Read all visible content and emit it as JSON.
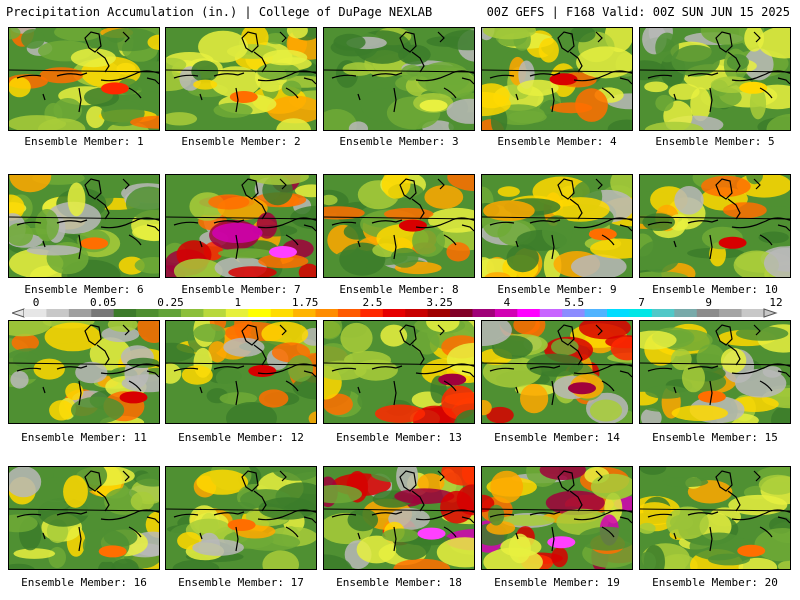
{
  "header": {
    "left_title": "Precipitation Accumulation (in.) | College of DuPage NEXLAB",
    "right_title": "00Z GEFS | F168 Valid: 00Z SUN JUN 15 2025"
  },
  "member_label_prefix": "Ensemble Member: ",
  "members": [
    {
      "number": 1,
      "label": "Ensemble Member: 1",
      "max_in": 3.0
    },
    {
      "number": 2,
      "label": "Ensemble Member: 2",
      "max_in": 2.5
    },
    {
      "number": 3,
      "label": "Ensemble Member: 3",
      "max_in": 1.5
    },
    {
      "number": 4,
      "label": "Ensemble Member: 4",
      "max_in": 3.25
    },
    {
      "number": 5,
      "label": "Ensemble Member: 5",
      "max_in": 2.0
    },
    {
      "number": 6,
      "label": "Ensemble Member: 6",
      "max_in": 2.5
    },
    {
      "number": 7,
      "label": "Ensemble Member: 7",
      "max_in": 5.5
    },
    {
      "number": 8,
      "label": "Ensemble Member: 8",
      "max_in": 3.25
    },
    {
      "number": 9,
      "label": "Ensemble Member: 9",
      "max_in": 2.5
    },
    {
      "number": 10,
      "label": "Ensemble Member: 10",
      "max_in": 3.25
    },
    {
      "number": 11,
      "label": "Ensemble Member: 11",
      "max_in": 3.25
    },
    {
      "number": 12,
      "label": "Ensemble Member: 12",
      "max_in": 3.25
    },
    {
      "number": 13,
      "label": "Ensemble Member: 13",
      "max_in": 4.0
    },
    {
      "number": 14,
      "label": "Ensemble Member: 14",
      "max_in": 4.0
    },
    {
      "number": 15,
      "label": "Ensemble Member: 15",
      "max_in": 2.5
    },
    {
      "number": 16,
      "label": "Ensemble Member: 16",
      "max_in": 2.5
    },
    {
      "number": 17,
      "label": "Ensemble Member: 17",
      "max_in": 2.5
    },
    {
      "number": 18,
      "label": "Ensemble Member: 18",
      "max_in": 5.5
    },
    {
      "number": 19,
      "label": "Ensemble Member: 19",
      "max_in": 5.5
    },
    {
      "number": 20,
      "label": "Ensemble Member: 20",
      "max_in": 2.5
    }
  ],
  "colorbar": {
    "units": "in.",
    "tick_labels": [
      "0",
      "0.05",
      "0.25",
      "1",
      "1.75",
      "2.5",
      "3.25",
      "4",
      "5.5",
      "7",
      "9",
      "12"
    ],
    "colors": [
      "#e6e6e6",
      "#c8c8c8",
      "#a0a0a0",
      "#787878",
      "#3c7a2a",
      "#4e8e30",
      "#62a238",
      "#8cbf3a",
      "#b8d83c",
      "#e6f03c",
      "#ffff00",
      "#ffdc00",
      "#ffb400",
      "#ff8c00",
      "#ff5a00",
      "#ff2800",
      "#e60000",
      "#c80000",
      "#a00000",
      "#820028",
      "#a00078",
      "#d200b4",
      "#ff00ff",
      "#c864ff",
      "#8c8cff",
      "#50b4ff",
      "#00dcff",
      "#00e6e6",
      "#50c8c8",
      "#78aaaa",
      "#8c8c8c",
      "#a5a5a5",
      "#c8c8c8"
    ]
  }
}
